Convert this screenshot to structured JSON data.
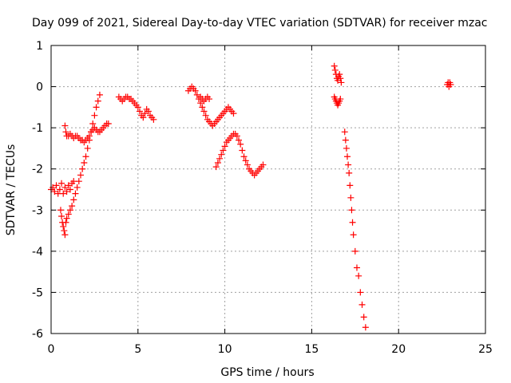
{
  "chart_data": {
    "type": "scatter",
    "title": "Day 099 of 2021, Sidereal Day-to-day VTEC variation (SDTVAR) for receiver mzac",
    "xlabel": "GPS time / hours",
    "ylabel": "SDTVAR / TECUs",
    "xlim": [
      0,
      25
    ],
    "ylim": [
      -6,
      1
    ],
    "xticks": [
      "0",
      "5",
      "10",
      "15",
      "20",
      "25"
    ],
    "yticks": [
      "1",
      "0",
      "-1",
      "-2",
      "-3",
      "-4",
      "-5",
      "-6"
    ],
    "grid": true,
    "marker": "plus",
    "color": "#ff0000",
    "segments": [
      {
        "x": [
          0.0,
          0.1,
          0.2,
          0.3,
          0.4,
          0.5,
          0.6,
          0.7,
          0.8,
          0.9,
          1.0,
          1.1,
          1.2,
          1.3
        ],
        "y": [
          -2.5,
          -2.45,
          -2.55,
          -2.4,
          -2.6,
          -2.5,
          -2.35,
          -2.6,
          -2.45,
          -2.55,
          -2.4,
          -2.5,
          -2.35,
          -2.3
        ]
      },
      {
        "x": [
          0.55,
          0.6,
          0.65,
          0.7,
          0.75,
          0.8,
          0.85,
          0.9,
          1.0,
          1.1,
          1.2,
          1.3,
          1.4,
          1.5,
          1.6,
          1.7,
          1.8,
          1.9,
          2.0,
          2.1,
          2.2,
          2.3,
          2.4,
          2.5,
          2.6,
          2.7,
          2.8
        ],
        "y": [
          -3.0,
          -3.15,
          -3.3,
          -3.4,
          -3.5,
          -3.6,
          -3.3,
          -3.2,
          -3.1,
          -3.0,
          -2.9,
          -2.75,
          -2.6,
          -2.45,
          -2.3,
          -2.15,
          -2.0,
          -1.85,
          -1.7,
          -1.5,
          -1.3,
          -1.1,
          -0.9,
          -0.7,
          -0.5,
          -0.35,
          -0.2
        ]
      },
      {
        "x": [
          0.8,
          0.85,
          0.9,
          1.0,
          1.1,
          1.2,
          1.3,
          1.4,
          1.5,
          1.6,
          1.7,
          1.8,
          1.9,
          2.0,
          2.1,
          2.2,
          2.3,
          2.4,
          2.5,
          2.6,
          2.7,
          2.8,
          2.9,
          3.0,
          3.1,
          3.2,
          3.3
        ],
        "y": [
          -0.95,
          -1.1,
          -1.2,
          -1.2,
          -1.15,
          -1.2,
          -1.25,
          -1.2,
          -1.2,
          -1.25,
          -1.3,
          -1.3,
          -1.35,
          -1.3,
          -1.25,
          -1.2,
          -1.1,
          -1.05,
          -1.0,
          -1.05,
          -1.1,
          -1.1,
          -1.05,
          -1.0,
          -0.95,
          -0.9,
          -0.9
        ]
      },
      {
        "x": [
          3.9,
          4.0,
          4.1,
          4.2,
          4.3,
          4.4,
          4.5,
          4.6,
          4.7,
          4.8,
          4.9,
          5.0,
          5.1,
          5.2,
          5.3,
          5.4,
          5.5,
          5.6,
          5.7,
          5.8,
          5.9
        ],
        "y": [
          -0.25,
          -0.3,
          -0.35,
          -0.3,
          -0.25,
          -0.25,
          -0.3,
          -0.3,
          -0.35,
          -0.4,
          -0.45,
          -0.5,
          -0.6,
          -0.7,
          -0.75,
          -0.65,
          -0.55,
          -0.6,
          -0.7,
          -0.75,
          -0.8
        ]
      },
      {
        "x": [
          7.9,
          8.0,
          8.1,
          8.2,
          8.3,
          8.4,
          8.5,
          8.6,
          8.7,
          8.8,
          8.9,
          9.0,
          9.1,
          9.2,
          9.3,
          9.4,
          9.5,
          9.6,
          9.7,
          9.8,
          9.9,
          10.0,
          10.1,
          10.2,
          10.3,
          10.4,
          10.5
        ],
        "y": [
          -0.1,
          -0.05,
          0.0,
          -0.05,
          -0.1,
          -0.2,
          -0.3,
          -0.4,
          -0.5,
          -0.6,
          -0.7,
          -0.8,
          -0.85,
          -0.9,
          -0.95,
          -0.9,
          -0.85,
          -0.8,
          -0.75,
          -0.7,
          -0.65,
          -0.6,
          -0.55,
          -0.5,
          -0.55,
          -0.6,
          -0.65
        ]
      },
      {
        "x": [
          8.6,
          8.7,
          8.8,
          8.9,
          9.0,
          9.1
        ],
        "y": [
          -0.25,
          -0.3,
          -0.35,
          -0.3,
          -0.25,
          -0.3
        ]
      },
      {
        "x": [
          9.5,
          9.6,
          9.7,
          9.8,
          9.9,
          10.0,
          10.1,
          10.2,
          10.3,
          10.4,
          10.5,
          10.6,
          10.7,
          10.8,
          10.9,
          11.0,
          11.1,
          11.2,
          11.3,
          11.4,
          11.5,
          11.6,
          11.7,
          11.8,
          11.9,
          12.0,
          12.1,
          12.2
        ],
        "y": [
          -1.95,
          -1.85,
          -1.75,
          -1.65,
          -1.55,
          -1.45,
          -1.35,
          -1.3,
          -1.25,
          -1.2,
          -1.15,
          -1.15,
          -1.2,
          -1.3,
          -1.4,
          -1.55,
          -1.7,
          -1.8,
          -1.9,
          -2.0,
          -2.05,
          -2.1,
          -2.15,
          -2.1,
          -2.05,
          -2.0,
          -1.95,
          -1.9
        ]
      },
      {
        "x": [
          16.3,
          16.35,
          16.4,
          16.45,
          16.5,
          16.55,
          16.6,
          16.65,
          16.7
        ],
        "y": [
          0.5,
          0.4,
          0.3,
          0.2,
          0.15,
          0.25,
          0.3,
          0.2,
          0.1
        ]
      },
      {
        "x": [
          16.3,
          16.35,
          16.4,
          16.45,
          16.5,
          16.55,
          16.6,
          16.65
        ],
        "y": [
          -0.25,
          -0.3,
          -0.35,
          -0.4,
          -0.45,
          -0.4,
          -0.35,
          -0.3
        ]
      },
      {
        "x": [
          16.9,
          16.95,
          17.0,
          17.05,
          17.1,
          17.15,
          17.2,
          17.25,
          17.3,
          17.35,
          17.4,
          17.5,
          17.6,
          17.7,
          17.8,
          17.9,
          18.0,
          18.1
        ],
        "y": [
          -1.1,
          -1.3,
          -1.5,
          -1.7,
          -1.9,
          -2.1,
          -2.4,
          -2.7,
          -3.0,
          -3.3,
          -3.6,
          -4.0,
          -4.4,
          -4.6,
          -5.0,
          -5.3,
          -5.6,
          -5.85
        ]
      },
      {
        "x": [
          22.8,
          22.85,
          22.9,
          22.95,
          23.0
        ],
        "y": [
          0.05,
          0.1,
          0.0,
          0.1,
          0.05
        ]
      }
    ]
  }
}
